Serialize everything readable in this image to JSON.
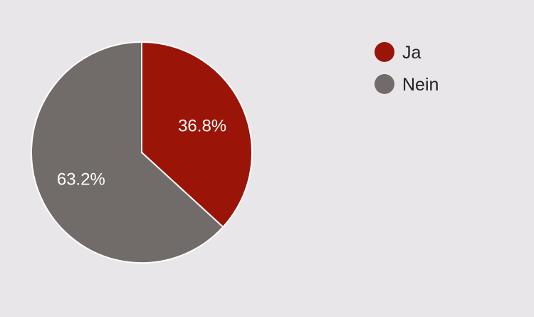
{
  "chart_data": {
    "type": "pie",
    "categories": [
      "Ja",
      "Nein"
    ],
    "values": [
      36.8,
      63.2
    ],
    "labels": [
      "36.8%",
      "63.2%"
    ],
    "colors": [
      "#9a1408",
      "#716c69"
    ],
    "legend": "right",
    "title": ""
  },
  "background": "#e9e6e9"
}
